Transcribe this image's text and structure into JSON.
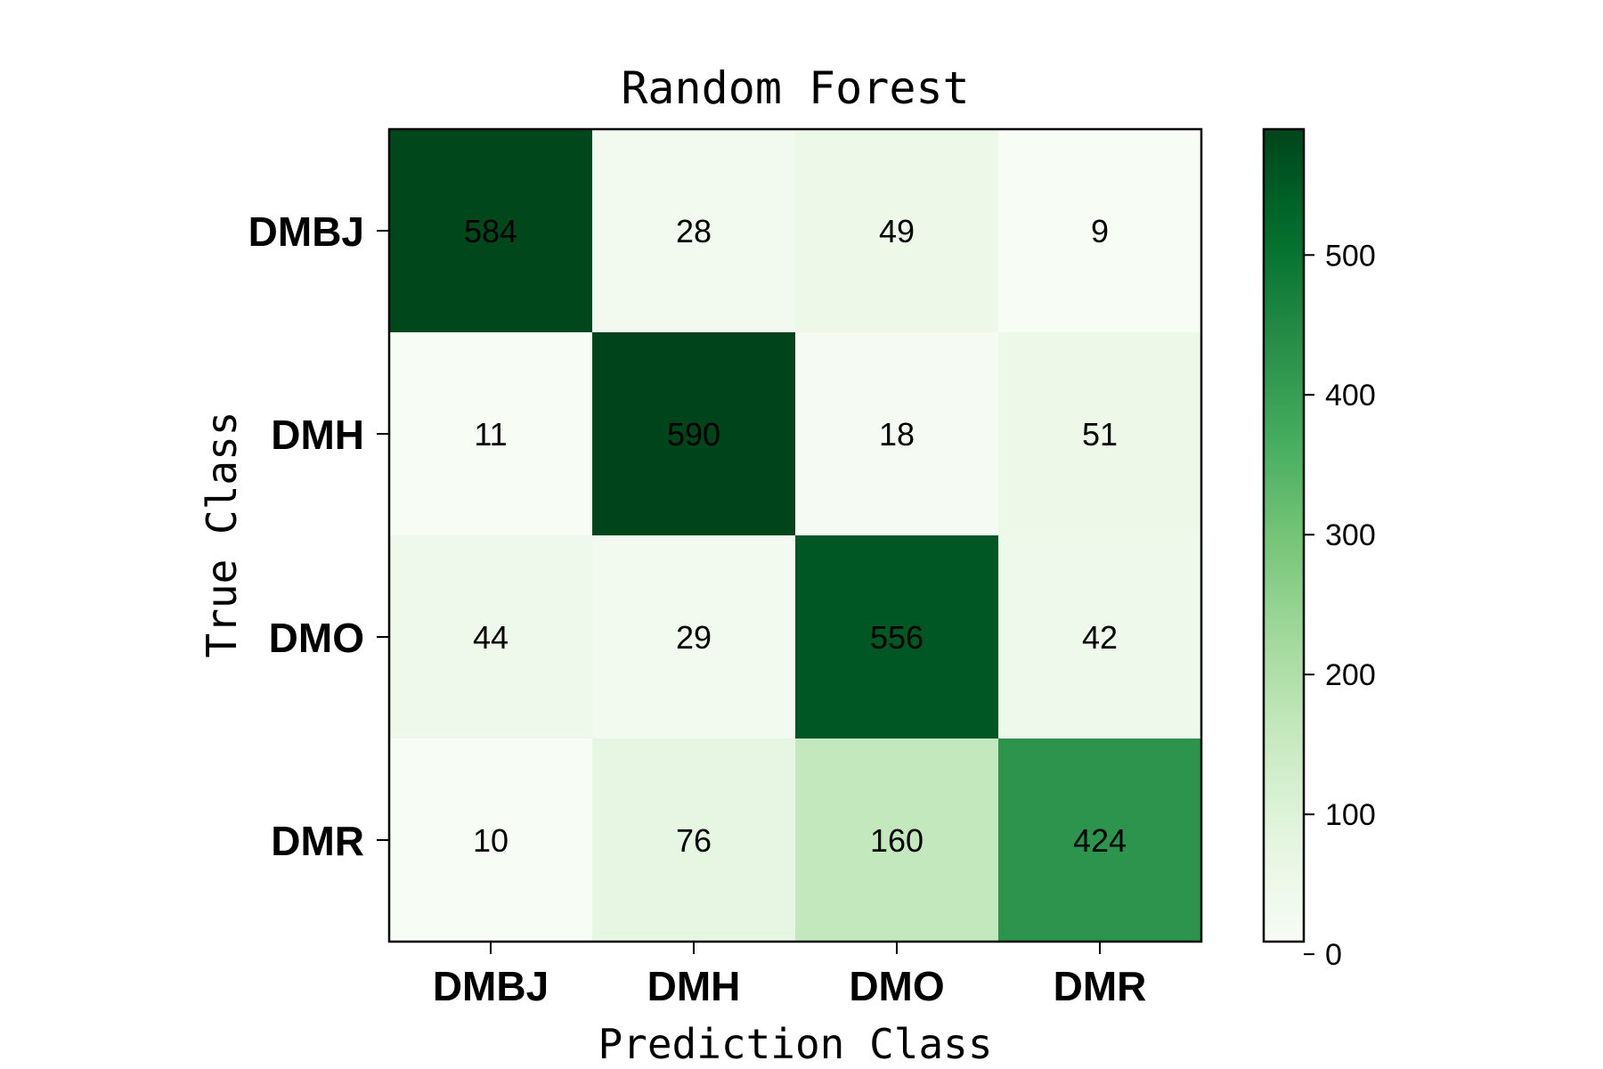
{
  "chart_data": {
    "type": "heatmap",
    "title": "Random Forest",
    "xlabel": "Prediction Class",
    "ylabel": "True Class",
    "x_categories": [
      "DMBJ",
      "DMH",
      "DMO",
      "DMR"
    ],
    "y_categories": [
      "DMBJ",
      "DMH",
      "DMO",
      "DMR"
    ],
    "values": [
      [
        584,
        28,
        49,
        9
      ],
      [
        11,
        590,
        18,
        51
      ],
      [
        44,
        29,
        556,
        42
      ],
      [
        10,
        76,
        160,
        424
      ]
    ],
    "colormap": "Greens",
    "vmin": 9,
    "vmax": 590,
    "colorbar_ticks": [
      0,
      100,
      200,
      300,
      400,
      500
    ],
    "colors": {
      "cmap_stops": [
        "#f7fcf5",
        "#e5f5e0",
        "#c7e9c0",
        "#a1d99b",
        "#74c476",
        "#41ab5d",
        "#238b45",
        "#006d2c",
        "#00441b"
      ],
      "text": "#000000",
      "frame": "#000000"
    }
  }
}
